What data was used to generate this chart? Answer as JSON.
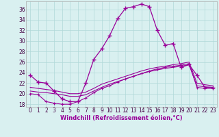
{
  "xlabel": "Windchill (Refroidissement éolien,°C)",
  "background_color": "#d9f0f0",
  "grid_color": "#b0d8d8",
  "line_color": "#990099",
  "xlim": [
    -0.5,
    23.5
  ],
  "ylim": [
    17.5,
    37.5
  ],
  "yticks": [
    18,
    20,
    22,
    24,
    26,
    28,
    30,
    32,
    34,
    36
  ],
  "xticks": [
    0,
    1,
    2,
    3,
    4,
    5,
    6,
    7,
    8,
    9,
    10,
    11,
    12,
    13,
    14,
    15,
    16,
    17,
    18,
    19,
    20,
    21,
    22,
    23
  ],
  "hours": [
    0,
    1,
    2,
    3,
    4,
    5,
    6,
    7,
    8,
    9,
    10,
    11,
    12,
    13,
    14,
    15,
    16,
    17,
    18,
    19,
    20,
    21,
    22,
    23
  ],
  "line1_y": [
    23.5,
    22.2,
    22.0,
    20.5,
    19.0,
    18.5,
    18.5,
    22.0,
    26.5,
    28.5,
    31.0,
    34.2,
    36.2,
    36.5,
    37.0,
    36.5,
    32.0,
    29.2,
    29.5,
    25.0,
    25.5,
    23.5,
    21.2,
    21.2
  ],
  "line2_y": [
    20.5,
    20.3,
    20.2,
    20.0,
    19.8,
    19.5,
    19.5,
    19.8,
    20.5,
    21.2,
    21.8,
    22.3,
    22.8,
    23.3,
    23.8,
    24.2,
    24.5,
    24.8,
    25.0,
    25.2,
    25.5,
    21.5,
    21.3,
    21.2
  ],
  "line3_y": [
    21.2,
    21.0,
    20.8,
    20.6,
    20.3,
    20.0,
    20.0,
    20.3,
    21.0,
    21.8,
    22.3,
    22.8,
    23.3,
    23.8,
    24.3,
    24.7,
    25.0,
    25.2,
    25.5,
    25.7,
    26.0,
    22.0,
    21.7,
    21.5
  ],
  "line4_y": [
    20.0,
    19.8,
    18.5,
    18.2,
    18.0,
    18.0,
    18.5,
    19.2,
    20.2,
    21.0,
    21.5,
    22.2,
    22.8,
    23.3,
    23.8,
    24.3,
    24.7,
    25.0,
    25.2,
    25.4,
    25.7,
    21.2,
    21.0,
    21.0
  ],
  "xlabel_fontsize": 6,
  "tick_fontsize": 5.5
}
